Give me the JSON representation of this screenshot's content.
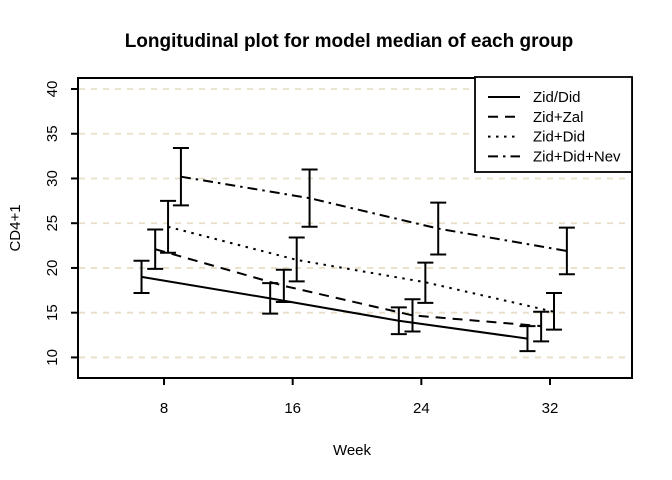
{
  "title": "Longitudinal plot for model median of each group",
  "axes": {
    "xlabel": "Week",
    "ylabel": "CD4+1",
    "x_ticks": [
      8,
      16,
      24,
      32
    ],
    "y_ticks": [
      10,
      15,
      20,
      25,
      30,
      35,
      40
    ],
    "xlim": [
      2.65,
      37.1
    ],
    "ylim": [
      7.7,
      41.23
    ]
  },
  "colors": {
    "line": "#000000",
    "grid": "#e8dfc8",
    "background": "#ffffff"
  },
  "legend": {
    "position": "top-right"
  },
  "chart_data": {
    "type": "line",
    "title": "Longitudinal plot for model median of each group",
    "xlabel": "Week",
    "ylabel": "CD4+1",
    "x": [
      8,
      16,
      24,
      32
    ],
    "xlim": [
      2.65,
      37.1
    ],
    "ylim": [
      7.7,
      41.23
    ],
    "grid": "horizontal-dashed",
    "legend_position": "top-right",
    "error_bars": true,
    "series": [
      {
        "name": "Zid/Did",
        "linetype": "solid",
        "x_offset": -1.4,
        "medians": [
          19.0,
          16.6,
          14.1,
          12.1
        ],
        "lower": [
          17.2,
          14.9,
          12.6,
          10.7
        ],
        "upper": [
          20.8,
          18.3,
          15.6,
          13.5
        ]
      },
      {
        "name": "Zid+Zal",
        "linetype": "dashed",
        "x_offset": -0.55,
        "medians": [
          22.1,
          18.0,
          14.7,
          13.5
        ],
        "lower": [
          19.9,
          16.2,
          12.9,
          11.8
        ],
        "upper": [
          24.3,
          19.8,
          16.5,
          15.1
        ]
      },
      {
        "name": "Zid+Did",
        "linetype": "dotted",
        "x_offset": 0.25,
        "medians": [
          24.6,
          20.9,
          18.4,
          15.1
        ],
        "lower": [
          21.7,
          18.5,
          16.1,
          13.1
        ],
        "upper": [
          27.5,
          23.4,
          20.6,
          17.2
        ]
      },
      {
        "name": "Zid+Did+Nev",
        "linetype": "dashdot",
        "x_offset": 1.05,
        "medians": [
          30.2,
          27.8,
          24.4,
          21.9
        ],
        "lower": [
          27.0,
          24.6,
          21.5,
          19.3
        ],
        "upper": [
          33.4,
          31.0,
          27.3,
          24.5
        ]
      }
    ]
  }
}
